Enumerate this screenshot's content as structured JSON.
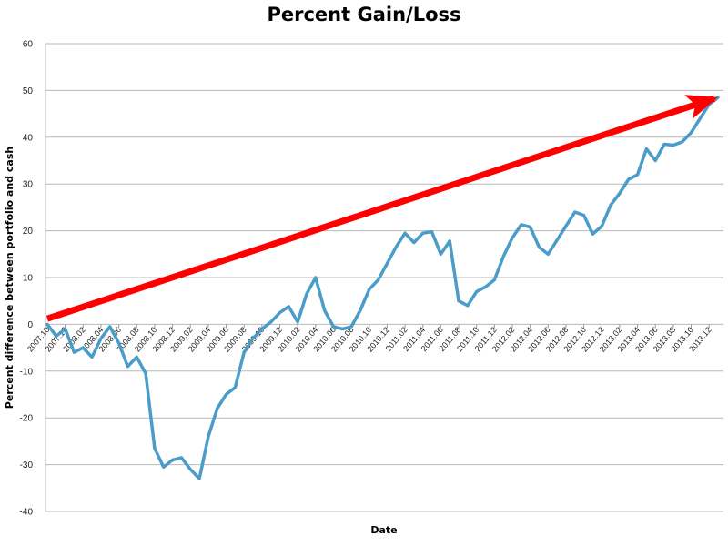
{
  "chart_data": {
    "type": "line",
    "title": "Percent Gain/Loss",
    "xlabel": "Date",
    "ylabel": "Percent difference between portfolio and cash",
    "ylim": [
      -40,
      60
    ],
    "yticks": [
      60,
      50,
      40,
      30,
      20,
      10,
      0,
      -10,
      -20,
      -30,
      -40
    ],
    "grid": "horizontal",
    "legend": "none",
    "x_tick_labels": [
      "2007.10",
      "2007.12",
      "2008.02",
      "2008.04",
      "2008.06",
      "2008.08",
      "2008.10",
      "2008.12",
      "2009.02",
      "2009.04",
      "2009.06",
      "2009.08",
      "2009.10",
      "2009.12",
      "2010.02",
      "2010.04",
      "2010.06",
      "2010.08",
      "2010.10",
      "2010.12",
      "2011.02",
      "2011.04",
      "2011.06",
      "2011.08",
      "2011.10",
      "2011.12",
      "2012.02",
      "2012.04",
      "2012.06",
      "2012.08",
      "2012.10",
      "2012.12",
      "2013.02",
      "2013.04",
      "2013.06",
      "2013.08",
      "2013.10",
      "2013.12"
    ],
    "series": [
      {
        "color": "#4a9cc9",
        "x": [
          "2007.10",
          "2007.11",
          "2007.12",
          "2008.01",
          "2008.02",
          "2008.03",
          "2008.04",
          "2008.05",
          "2008.06",
          "2008.07",
          "2008.08",
          "2008.09",
          "2008.10",
          "2008.11",
          "2008.12",
          "2009.01",
          "2009.02",
          "2009.03",
          "2009.04",
          "2009.05",
          "2009.06",
          "2009.07",
          "2009.08",
          "2009.09",
          "2009.10",
          "2009.11",
          "2009.12",
          "2010.01",
          "2010.02",
          "2010.03",
          "2010.04",
          "2010.05",
          "2010.06",
          "2010.07",
          "2010.08",
          "2010.09",
          "2010.10",
          "2010.11",
          "2010.12",
          "2011.01",
          "2011.02",
          "2011.03",
          "2011.04",
          "2011.05",
          "2011.06",
          "2011.07",
          "2011.08",
          "2011.09",
          "2011.10",
          "2011.11",
          "2011.12",
          "2012.01",
          "2012.02",
          "2012.03",
          "2012.04",
          "2012.05",
          "2012.06",
          "2012.07",
          "2012.08",
          "2012.09",
          "2012.10",
          "2012.11",
          "2012.12",
          "2013.01",
          "2013.02",
          "2013.03",
          "2013.04",
          "2013.05",
          "2013.06",
          "2013.07",
          "2013.08",
          "2013.09",
          "2013.10",
          "2013.11",
          "2013.12",
          "2014.01"
        ],
        "values": [
          0,
          -2.5,
          -1,
          -6,
          -5,
          -7,
          -3,
          -0.5,
          -4,
          -9,
          -7,
          -10.5,
          -26.5,
          -30.5,
          -29,
          -28.5,
          -31,
          -33,
          -24,
          -18,
          -15,
          -13.5,
          -6,
          -3,
          -1,
          0.5,
          2.5,
          3.8,
          0.5,
          6.5,
          10,
          3,
          -0.5,
          -1,
          -0.5,
          3,
          7.5,
          9.5,
          13,
          16.5,
          19.5,
          17.5,
          19.5,
          19.8,
          15,
          17.8,
          5,
          4,
          7,
          8,
          9.5,
          14.5,
          18.5,
          21.3,
          20.8,
          16.5,
          15,
          18,
          21,
          24,
          23.3,
          19.3,
          21,
          25.5,
          28,
          31,
          32,
          37.5,
          35,
          38.5,
          38.3,
          39,
          41,
          44,
          47,
          48.5
        ]
      }
    ],
    "annotations": [
      {
        "type": "arrow",
        "color": "#ff0000",
        "from": [
          "2007.10",
          1.2
        ],
        "to": [
          "2014.01",
          48.3
        ]
      }
    ]
  }
}
